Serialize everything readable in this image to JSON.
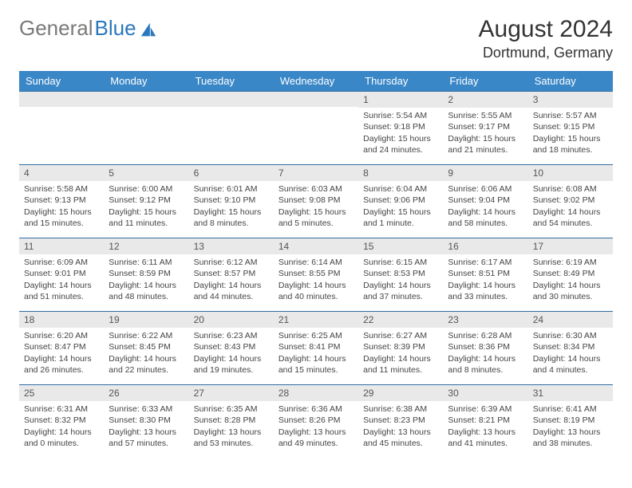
{
  "brand": {
    "part1": "General",
    "part2": "Blue"
  },
  "title": "August 2024",
  "location": "Dortmund, Germany",
  "colors": {
    "header_bg": "#3a87c7",
    "header_text": "#ffffff",
    "row_divider": "#2f6da3",
    "daynum_bg": "#e9e9e9",
    "brand_blue": "#2b77bd",
    "brand_gray": "#7a7a7a",
    "body_text": "#444444"
  },
  "weekdays": [
    "Sunday",
    "Monday",
    "Tuesday",
    "Wednesday",
    "Thursday",
    "Friday",
    "Saturday"
  ],
  "weeks": [
    [
      null,
      null,
      null,
      null,
      {
        "n": "1",
        "sunrise": "Sunrise: 5:54 AM",
        "sunset": "Sunset: 9:18 PM",
        "daylight1": "Daylight: 15 hours",
        "daylight2": "and 24 minutes."
      },
      {
        "n": "2",
        "sunrise": "Sunrise: 5:55 AM",
        "sunset": "Sunset: 9:17 PM",
        "daylight1": "Daylight: 15 hours",
        "daylight2": "and 21 minutes."
      },
      {
        "n": "3",
        "sunrise": "Sunrise: 5:57 AM",
        "sunset": "Sunset: 9:15 PM",
        "daylight1": "Daylight: 15 hours",
        "daylight2": "and 18 minutes."
      }
    ],
    [
      {
        "n": "4",
        "sunrise": "Sunrise: 5:58 AM",
        "sunset": "Sunset: 9:13 PM",
        "daylight1": "Daylight: 15 hours",
        "daylight2": "and 15 minutes."
      },
      {
        "n": "5",
        "sunrise": "Sunrise: 6:00 AM",
        "sunset": "Sunset: 9:12 PM",
        "daylight1": "Daylight: 15 hours",
        "daylight2": "and 11 minutes."
      },
      {
        "n": "6",
        "sunrise": "Sunrise: 6:01 AM",
        "sunset": "Sunset: 9:10 PM",
        "daylight1": "Daylight: 15 hours",
        "daylight2": "and 8 minutes."
      },
      {
        "n": "7",
        "sunrise": "Sunrise: 6:03 AM",
        "sunset": "Sunset: 9:08 PM",
        "daylight1": "Daylight: 15 hours",
        "daylight2": "and 5 minutes."
      },
      {
        "n": "8",
        "sunrise": "Sunrise: 6:04 AM",
        "sunset": "Sunset: 9:06 PM",
        "daylight1": "Daylight: 15 hours",
        "daylight2": "and 1 minute."
      },
      {
        "n": "9",
        "sunrise": "Sunrise: 6:06 AM",
        "sunset": "Sunset: 9:04 PM",
        "daylight1": "Daylight: 14 hours",
        "daylight2": "and 58 minutes."
      },
      {
        "n": "10",
        "sunrise": "Sunrise: 6:08 AM",
        "sunset": "Sunset: 9:02 PM",
        "daylight1": "Daylight: 14 hours",
        "daylight2": "and 54 minutes."
      }
    ],
    [
      {
        "n": "11",
        "sunrise": "Sunrise: 6:09 AM",
        "sunset": "Sunset: 9:01 PM",
        "daylight1": "Daylight: 14 hours",
        "daylight2": "and 51 minutes."
      },
      {
        "n": "12",
        "sunrise": "Sunrise: 6:11 AM",
        "sunset": "Sunset: 8:59 PM",
        "daylight1": "Daylight: 14 hours",
        "daylight2": "and 48 minutes."
      },
      {
        "n": "13",
        "sunrise": "Sunrise: 6:12 AM",
        "sunset": "Sunset: 8:57 PM",
        "daylight1": "Daylight: 14 hours",
        "daylight2": "and 44 minutes."
      },
      {
        "n": "14",
        "sunrise": "Sunrise: 6:14 AM",
        "sunset": "Sunset: 8:55 PM",
        "daylight1": "Daylight: 14 hours",
        "daylight2": "and 40 minutes."
      },
      {
        "n": "15",
        "sunrise": "Sunrise: 6:15 AM",
        "sunset": "Sunset: 8:53 PM",
        "daylight1": "Daylight: 14 hours",
        "daylight2": "and 37 minutes."
      },
      {
        "n": "16",
        "sunrise": "Sunrise: 6:17 AM",
        "sunset": "Sunset: 8:51 PM",
        "daylight1": "Daylight: 14 hours",
        "daylight2": "and 33 minutes."
      },
      {
        "n": "17",
        "sunrise": "Sunrise: 6:19 AM",
        "sunset": "Sunset: 8:49 PM",
        "daylight1": "Daylight: 14 hours",
        "daylight2": "and 30 minutes."
      }
    ],
    [
      {
        "n": "18",
        "sunrise": "Sunrise: 6:20 AM",
        "sunset": "Sunset: 8:47 PM",
        "daylight1": "Daylight: 14 hours",
        "daylight2": "and 26 minutes."
      },
      {
        "n": "19",
        "sunrise": "Sunrise: 6:22 AM",
        "sunset": "Sunset: 8:45 PM",
        "daylight1": "Daylight: 14 hours",
        "daylight2": "and 22 minutes."
      },
      {
        "n": "20",
        "sunrise": "Sunrise: 6:23 AM",
        "sunset": "Sunset: 8:43 PM",
        "daylight1": "Daylight: 14 hours",
        "daylight2": "and 19 minutes."
      },
      {
        "n": "21",
        "sunrise": "Sunrise: 6:25 AM",
        "sunset": "Sunset: 8:41 PM",
        "daylight1": "Daylight: 14 hours",
        "daylight2": "and 15 minutes."
      },
      {
        "n": "22",
        "sunrise": "Sunrise: 6:27 AM",
        "sunset": "Sunset: 8:39 PM",
        "daylight1": "Daylight: 14 hours",
        "daylight2": "and 11 minutes."
      },
      {
        "n": "23",
        "sunrise": "Sunrise: 6:28 AM",
        "sunset": "Sunset: 8:36 PM",
        "daylight1": "Daylight: 14 hours",
        "daylight2": "and 8 minutes."
      },
      {
        "n": "24",
        "sunrise": "Sunrise: 6:30 AM",
        "sunset": "Sunset: 8:34 PM",
        "daylight1": "Daylight: 14 hours",
        "daylight2": "and 4 minutes."
      }
    ],
    [
      {
        "n": "25",
        "sunrise": "Sunrise: 6:31 AM",
        "sunset": "Sunset: 8:32 PM",
        "daylight1": "Daylight: 14 hours",
        "daylight2": "and 0 minutes."
      },
      {
        "n": "26",
        "sunrise": "Sunrise: 6:33 AM",
        "sunset": "Sunset: 8:30 PM",
        "daylight1": "Daylight: 13 hours",
        "daylight2": "and 57 minutes."
      },
      {
        "n": "27",
        "sunrise": "Sunrise: 6:35 AM",
        "sunset": "Sunset: 8:28 PM",
        "daylight1": "Daylight: 13 hours",
        "daylight2": "and 53 minutes."
      },
      {
        "n": "28",
        "sunrise": "Sunrise: 6:36 AM",
        "sunset": "Sunset: 8:26 PM",
        "daylight1": "Daylight: 13 hours",
        "daylight2": "and 49 minutes."
      },
      {
        "n": "29",
        "sunrise": "Sunrise: 6:38 AM",
        "sunset": "Sunset: 8:23 PM",
        "daylight1": "Daylight: 13 hours",
        "daylight2": "and 45 minutes."
      },
      {
        "n": "30",
        "sunrise": "Sunrise: 6:39 AM",
        "sunset": "Sunset: 8:21 PM",
        "daylight1": "Daylight: 13 hours",
        "daylight2": "and 41 minutes."
      },
      {
        "n": "31",
        "sunrise": "Sunrise: 6:41 AM",
        "sunset": "Sunset: 8:19 PM",
        "daylight1": "Daylight: 13 hours",
        "daylight2": "and 38 minutes."
      }
    ]
  ]
}
